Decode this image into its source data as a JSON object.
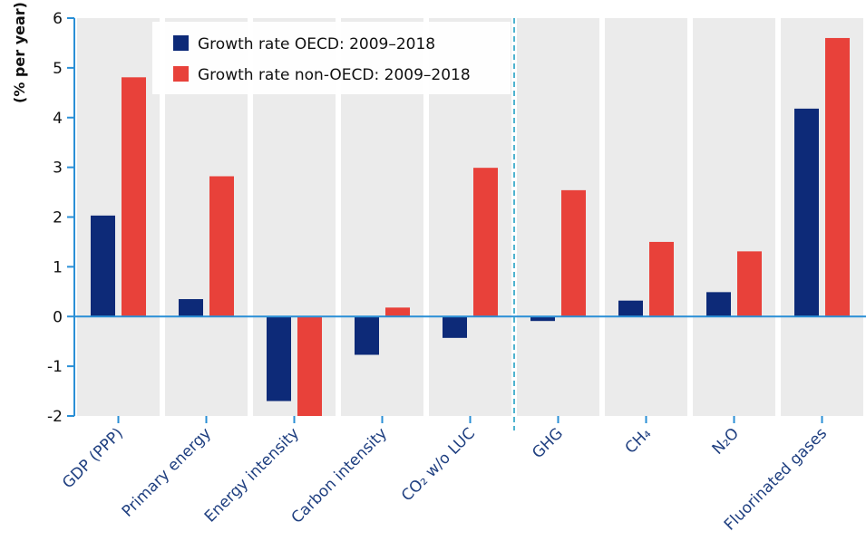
{
  "chart_data": {
    "type": "bar",
    "ylabel": "(% per year)",
    "ylim": [
      -2,
      6
    ],
    "yticks": [
      -2,
      -1,
      0,
      1,
      2,
      3,
      4,
      5,
      6
    ],
    "categories": [
      "GDP (PPP)",
      "Primary energy",
      "Energy intensity",
      "Carbon intensity",
      "CO₂ w/o LUC",
      "GHG",
      "CH₄",
      "N₂O",
      "Fluorinated gases"
    ],
    "series": [
      {
        "name": "Growth rate OECD: 2009–2018",
        "color": "#0d2a78",
        "values": [
          2.03,
          0.35,
          -1.7,
          -0.77,
          -0.43,
          -0.09,
          0.32,
          0.49,
          4.18
        ]
      },
      {
        "name": "Growth rate non-OECD: 2009–2018",
        "color": "#e8413a",
        "values": [
          4.81,
          2.82,
          -2.0,
          0.18,
          2.99,
          2.54,
          1.5,
          1.31,
          5.6
        ]
      }
    ],
    "grid": false,
    "legend": "top-left",
    "divider_after_index": 4
  }
}
